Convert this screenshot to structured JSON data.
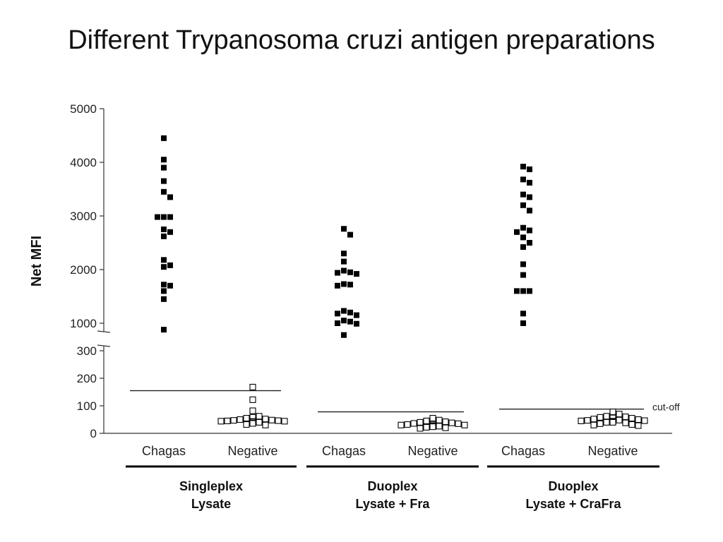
{
  "title": "Different Trypanosoma cruzi antigen preparations",
  "chart_data": {
    "type": "scatter",
    "ylabel": "Net MFI",
    "axis_break": true,
    "upper_segment": {
      "ylim": [
        1000,
        5000
      ],
      "ticks": [
        "1000",
        "2000",
        "3000",
        "4000",
        "5000"
      ]
    },
    "lower_segment": {
      "ylim": [
        0,
        300
      ],
      "ticks": [
        "0",
        "100",
        "200",
        "300"
      ]
    },
    "categories": [
      "Chagas",
      "Negative",
      "Chagas",
      "Negative",
      "Chagas",
      "Negative"
    ],
    "groups": [
      {
        "label_line1": "Singleplex",
        "label_line2": "Lysate",
        "cutoff": 155
      },
      {
        "label_line1": "Duoplex",
        "label_line2": "Lysate + Fra",
        "cutoff": 78
      },
      {
        "label_line1": "Duoplex",
        "label_line2": "Lysate + CraFra",
        "cutoff": 88
      }
    ],
    "cutoff_label": "cut-off",
    "series": [
      {
        "marker": "filled-square",
        "values": [
          4450,
          4050,
          3900,
          3650,
          3450,
          3350,
          2980,
          2980,
          2980,
          2750,
          2700,
          2620,
          2180,
          2080,
          2050,
          1720,
          1700,
          1600,
          1450,
          880
        ]
      },
      {
        "marker": "open-square",
        "values": [
          168,
          122,
          82,
          62,
          58,
          55,
          52,
          50,
          48,
          47,
          46,
          45,
          44,
          44,
          43,
          42,
          42,
          40,
          38,
          36,
          32,
          30
        ]
      },
      {
        "marker": "filled-square",
        "values": [
          2760,
          2650,
          2300,
          2150,
          1980,
          1950,
          1940,
          1920,
          1730,
          1720,
          1700,
          1230,
          1200,
          1180,
          1150,
          1050,
          1030,
          1000,
          990,
          780
        ]
      },
      {
        "marker": "open-square",
        "values": [
          55,
          48,
          45,
          42,
          40,
          38,
          36,
          35,
          33,
          32,
          30,
          30,
          28,
          28,
          27,
          26,
          26,
          25,
          24,
          22,
          20,
          18
        ]
      },
      {
        "marker": "filled-square",
        "values": [
          3920,
          3870,
          3680,
          3620,
          3400,
          3350,
          3200,
          3100,
          2780,
          2730,
          2700,
          2600,
          2500,
          2420,
          2100,
          1900,
          1600,
          1600,
          1600,
          1180,
          1000
        ]
      },
      {
        "marker": "open-square",
        "values": [
          78,
          70,
          62,
          60,
          58,
          56,
          55,
          52,
          50,
          48,
          47,
          46,
          45,
          44,
          43,
          42,
          42,
          40,
          40,
          38,
          35,
          32,
          30,
          28
        ]
      }
    ]
  }
}
